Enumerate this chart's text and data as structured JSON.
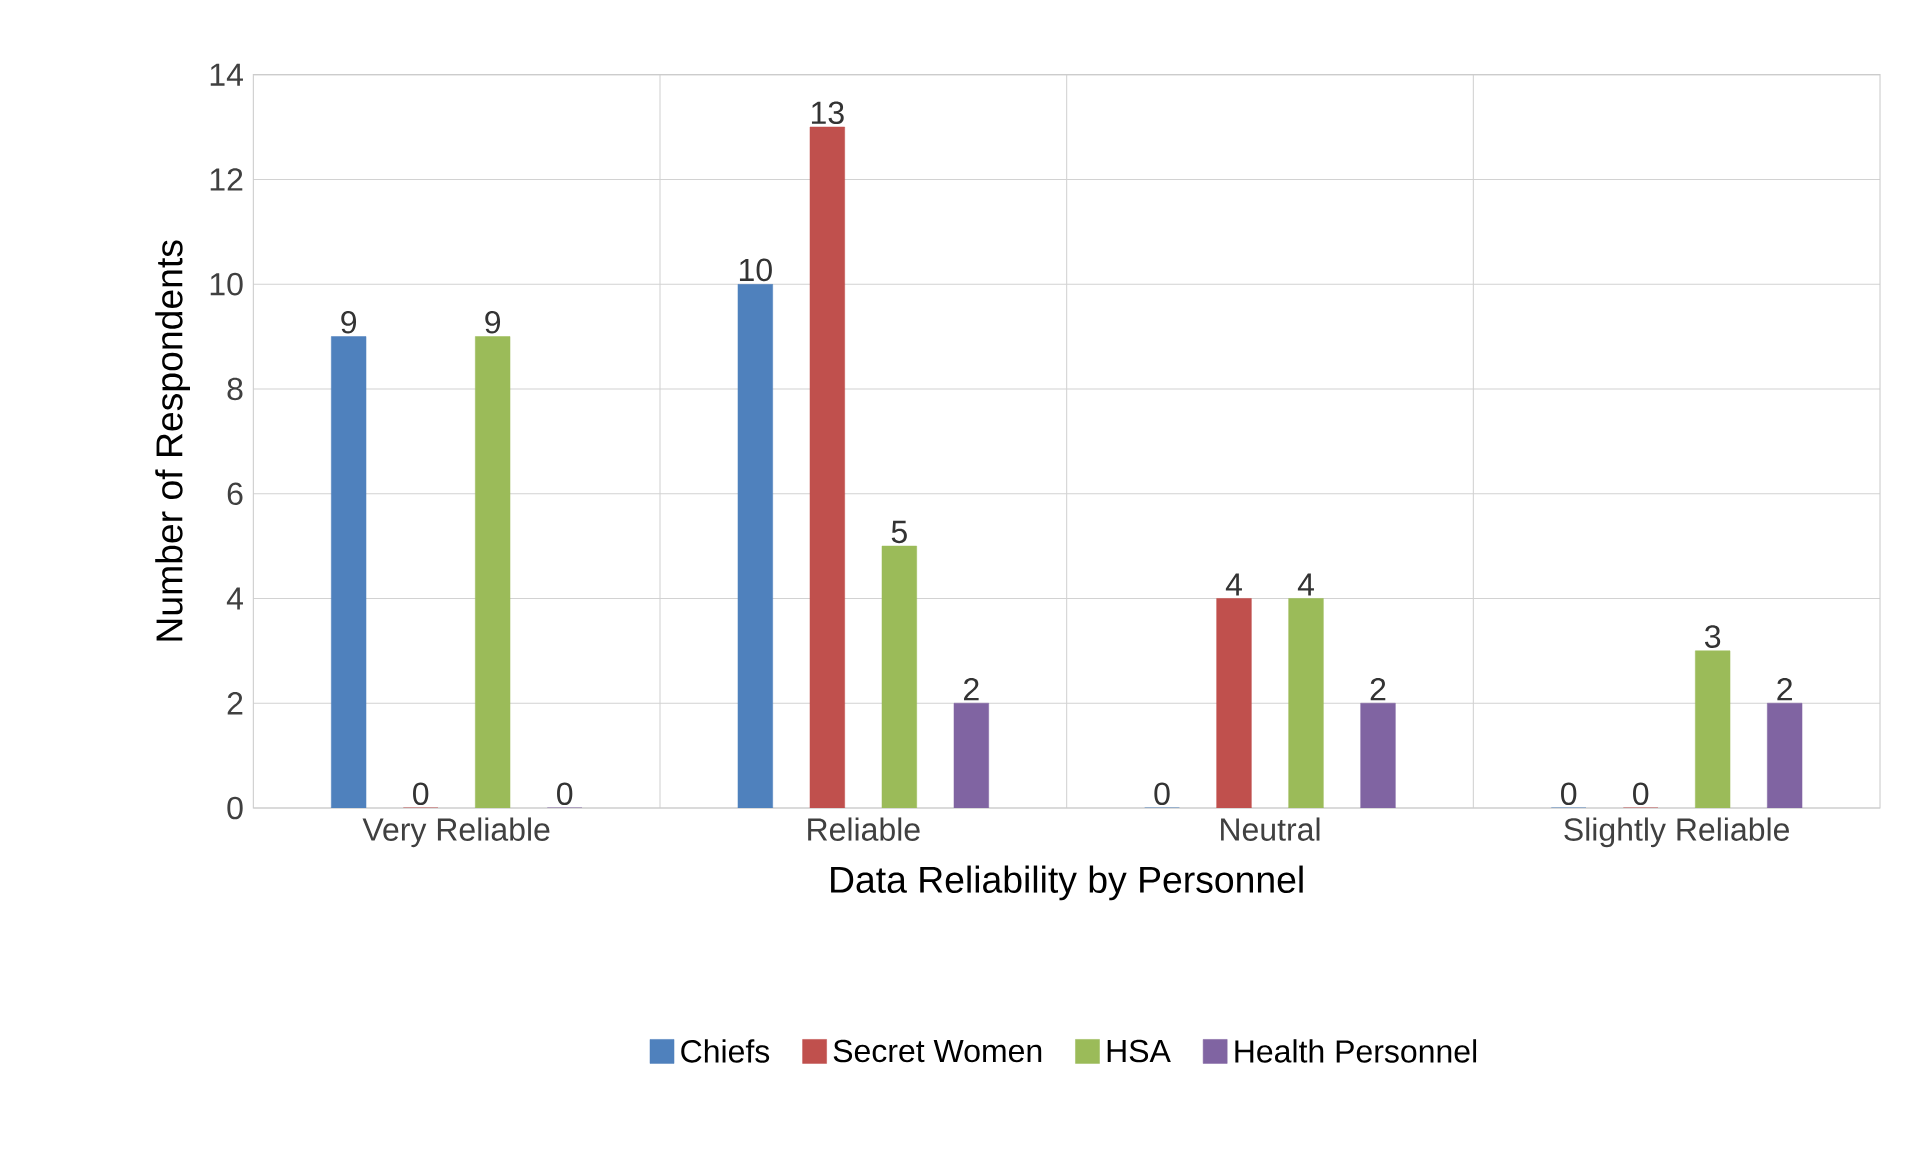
{
  "chart_data": {
    "type": "bar",
    "xlabel": "Data Reliability by Personnel",
    "ylabel": "Number of Respondents",
    "categories": [
      "Very Reliable",
      "Reliable",
      "Neutral",
      "Slightly Reliable"
    ],
    "series": [
      {
        "name": "Chiefs",
        "color": "#4f81bd",
        "values": [
          9,
          10,
          0,
          0
        ]
      },
      {
        "name": "Secret Women",
        "color": "#c0504d",
        "values": [
          0,
          13,
          4,
          0
        ]
      },
      {
        "name": "HSA",
        "color": "#9bbb59",
        "values": [
          9,
          5,
          4,
          3
        ]
      },
      {
        "name": "Health Personnel",
        "color": "#8064a2",
        "values": [
          0,
          2,
          2,
          2
        ]
      }
    ],
    "ylim": [
      0,
      14
    ],
    "yticks": [
      0,
      2,
      4,
      6,
      8,
      10,
      12,
      14
    ],
    "grid": true,
    "legend": "bottom",
    "data_labels": true
  }
}
